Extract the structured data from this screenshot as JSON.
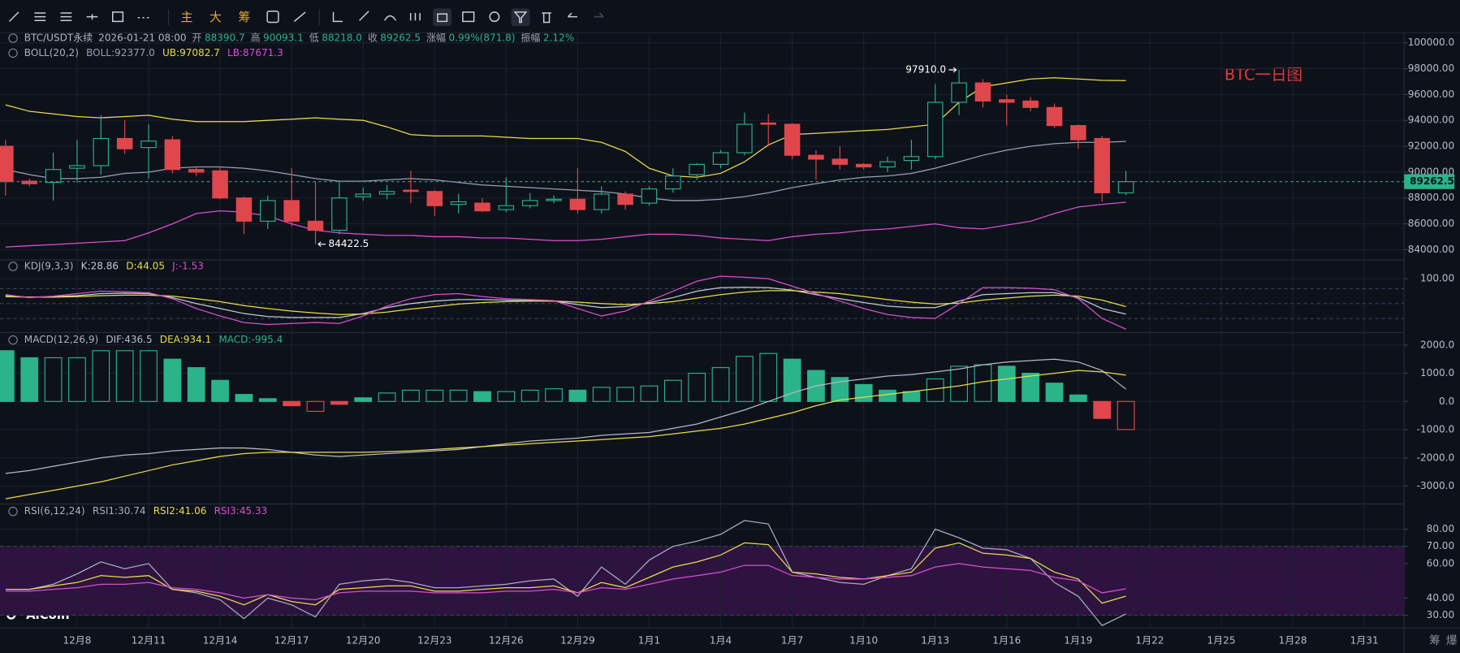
{
  "toolbar": {
    "modes": [
      "主",
      "大",
      "筹"
    ],
    "bottom_right": [
      "筹",
      "爆"
    ]
  },
  "watermark": "AiCoin",
  "info": {
    "symbol": "BTC/USDT永续",
    "time": "2026-01-21 08:00",
    "fields": [
      {
        "label": "开",
        "value": "88390.7"
      },
      {
        "label": "高",
        "value": "90093.1"
      },
      {
        "label": "低",
        "value": "88218.0"
      },
      {
        "label": "收",
        "value": "89262.5"
      },
      {
        "label": "涨幅",
        "value": "0.99%(871.8)"
      },
      {
        "label": "振幅",
        "value": "2.12%"
      }
    ]
  },
  "chart_data": [
    {
      "type": "candlestick",
      "title": "BTC一日图",
      "indicator": "BOLL(20,2)",
      "categories": [
        null,
        null,
        null,
        "12月8",
        null,
        null,
        "12月11",
        null,
        null,
        "12月14",
        null,
        null,
        "12月17",
        null,
        null,
        "12月20",
        null,
        null,
        "12月23",
        null,
        null,
        "12月26",
        null,
        null,
        "12月29",
        null,
        null,
        "1月1",
        null,
        null,
        "1月4",
        null,
        null,
        "1月7",
        null,
        null,
        "1月10",
        null,
        null,
        "1月13",
        null,
        null,
        "1月16",
        null,
        null,
        "1月19",
        null,
        null
      ],
      "future_categories": [
        "1月22",
        "1月25",
        "1月28",
        "1月31"
      ],
      "up_color": "#2bb38a",
      "down_color": "#e0474c",
      "open": [
        92000,
        89300,
        89200,
        90300,
        90500,
        92600,
        91900,
        92500,
        90200,
        90100,
        88000,
        86200,
        87800,
        86200,
        85500,
        88100,
        88300,
        88600,
        88500,
        87500,
        87600,
        87100,
        87400,
        87800,
        87900,
        87100,
        88300,
        87600,
        88700,
        89800,
        90600,
        91500,
        93800,
        93700,
        91300,
        91000,
        90600,
        90400,
        90900,
        91200,
        95400,
        96900,
        95600,
        95500,
        95000,
        93600,
        92600,
        88390.7
      ],
      "high": [
        92500,
        89500,
        91500,
        92500,
        94400,
        94000,
        93700,
        92800,
        90400,
        90400,
        88100,
        88200,
        90300,
        89300,
        89300,
        88800,
        89000,
        90100,
        88600,
        88300,
        88000,
        89600,
        88400,
        88200,
        90300,
        88900,
        88500,
        88900,
        90300,
        90700,
        91700,
        94600,
        94500,
        93800,
        91700,
        92000,
        90700,
        91200,
        92500,
        96800,
        97910,
        97200,
        96000,
        95800,
        95300,
        93700,
        92800,
        90093.1
      ],
      "low": [
        88180,
        88900,
        87800,
        89200,
        89800,
        91400,
        89500,
        89900,
        89700,
        87900,
        85200,
        85600,
        85800,
        84422.5,
        85200,
        87800,
        87900,
        87600,
        86600,
        86800,
        86900,
        86900,
        87200,
        87600,
        86800,
        86800,
        87100,
        87400,
        88400,
        89400,
        90300,
        91300,
        92000,
        91000,
        89400,
        90200,
        90200,
        90000,
        90200,
        91000,
        94400,
        95000,
        93600,
        94700,
        93400,
        91800,
        87700,
        88218
      ],
      "close": [
        89260,
        89100,
        90200,
        90500,
        92600,
        91800,
        92400,
        90200,
        90000,
        88000,
        86200,
        87800,
        86200,
        85500,
        88000,
        88300,
        88500,
        88500,
        87400,
        87700,
        87000,
        87400,
        87800,
        87900,
        87100,
        88300,
        87500,
        88700,
        89700,
        90600,
        91500,
        93700,
        93700,
        91300,
        91000,
        90600,
        90400,
        90800,
        91200,
        95400,
        96900,
        95500,
        95400,
        95000,
        93600,
        92500,
        88400,
        89262.5
      ],
      "extreme_labels": {
        "high": "97910.0",
        "low": "84422.5"
      },
      "series": [
        {
          "name": "BOLL:92377.0",
          "color": "#9a9fb4",
          "values": [
            90200,
            89800,
            89500,
            89500,
            89600,
            89900,
            90000,
            90300,
            90400,
            90400,
            90300,
            90100,
            89800,
            89500,
            89300,
            89300,
            89400,
            89500,
            89400,
            89200,
            89000,
            88900,
            88800,
            88700,
            88600,
            88500,
            88300,
            88000,
            87800,
            87800,
            87900,
            88100,
            88400,
            88800,
            89100,
            89400,
            89600,
            89700,
            89900,
            90300,
            90800,
            91300,
            91700,
            92000,
            92200,
            92300,
            92300,
            92377.0
          ]
        },
        {
          "name": "UB:97082.7",
          "color": "#e8dc4a",
          "values": [
            95200,
            94700,
            94500,
            94300,
            94200,
            94300,
            94400,
            94100,
            93900,
            93900,
            93900,
            94000,
            94100,
            94200,
            94100,
            94000,
            93500,
            92900,
            92800,
            92800,
            92800,
            92700,
            92600,
            92600,
            92600,
            92300,
            91600,
            90300,
            89700,
            89600,
            89900,
            90800,
            92100,
            92900,
            93000,
            93100,
            93200,
            93300,
            93500,
            93700,
            95400,
            96600,
            96900,
            97200,
            97300,
            97200,
            97100,
            97082.7
          ]
        },
        {
          "name": "LB:87671.3",
          "color": "#d94fcf",
          "values": [
            84200,
            84300,
            84400,
            84500,
            84600,
            84700,
            85300,
            86000,
            86800,
            87000,
            86900,
            86600,
            86000,
            85500,
            85300,
            85200,
            85100,
            85100,
            85000,
            85000,
            84900,
            84900,
            84800,
            84700,
            84700,
            84800,
            85000,
            85200,
            85200,
            85100,
            84900,
            84800,
            84700,
            85000,
            85200,
            85300,
            85500,
            85600,
            85800,
            86000,
            85700,
            85600,
            85900,
            86200,
            86800,
            87300,
            87500,
            87671.3
          ]
        }
      ],
      "ylim": [
        83280,
        100720
      ],
      "yticks": [
        {
          "value": 84000,
          "label": "84000.00"
        },
        {
          "value": 86000,
          "label": "86000.00"
        },
        {
          "value": 88000,
          "label": "88000.00"
        },
        {
          "value": 90000,
          "label": "90000.00"
        },
        {
          "value": 92000,
          "label": "92000.00"
        },
        {
          "value": 94000,
          "label": "94000.00"
        },
        {
          "value": 96000,
          "label": "96000.00"
        },
        {
          "value": 98000,
          "label": "98000.00"
        },
        {
          "value": 100000,
          "label": "100000.0"
        }
      ]
    },
    {
      "type": "line",
      "indicator": "KDJ(9,3,3)",
      "series": [
        {
          "name": "K:28.86",
          "color": "#c4c8d4",
          "values": [
            66,
            63,
            64,
            66,
            70,
            71,
            70,
            62,
            50,
            40,
            30,
            24,
            22,
            22,
            22,
            30,
            42,
            50,
            55,
            58,
            58,
            57,
            56,
            55,
            48,
            42,
            44,
            52,
            62,
            75,
            82,
            83,
            82,
            77,
            68,
            60,
            52,
            45,
            42,
            42,
            55,
            68,
            70,
            72,
            72,
            62,
            40,
            28.86
          ]
        },
        {
          "name": "D:44.05",
          "color": "#e8dc4a",
          "values": [
            64,
            63,
            63,
            64,
            66,
            67,
            67,
            65,
            60,
            54,
            46,
            40,
            35,
            31,
            28,
            29,
            33,
            39,
            44,
            49,
            52,
            54,
            55,
            55,
            53,
            50,
            48,
            50,
            54,
            61,
            68,
            73,
            76,
            76,
            73,
            70,
            64,
            58,
            53,
            49,
            51,
            57,
            61,
            65,
            67,
            65,
            57,
            44.05
          ]
        },
        {
          "name": "J:-1.53",
          "color": "#d94fcf",
          "values": [
            68,
            62,
            65,
            70,
            75,
            74,
            72,
            60,
            40,
            25,
            12,
            8,
            10,
            12,
            10,
            25,
            45,
            60,
            68,
            70,
            64,
            60,
            58,
            56,
            40,
            25,
            35,
            55,
            75,
            95,
            105,
            103,
            100,
            85,
            70,
            55,
            40,
            28,
            22,
            20,
            50,
            82,
            82,
            81,
            78,
            60,
            20,
            -1.53
          ]
        }
      ],
      "ylim": [
        -6.4,
        136
      ],
      "yticks": [
        {
          "value": 100,
          "label": "100.00"
        }
      ],
      "levels": [
        80,
        50,
        20
      ]
    },
    {
      "type": "bar",
      "indicator": "MACD(12,26,9)",
      "series": [
        {
          "name": "DIF:436.5",
          "type": "line",
          "color": "#b6b9c8",
          "values": [
            -2550,
            -2450,
            -2300,
            -2150,
            -2000,
            -1900,
            -1850,
            -1750,
            -1700,
            -1650,
            -1650,
            -1700,
            -1800,
            -1900,
            -1950,
            -1900,
            -1850,
            -1800,
            -1750,
            -1700,
            -1600,
            -1500,
            -1400,
            -1350,
            -1300,
            -1200,
            -1150,
            -1100,
            -950,
            -800,
            -550,
            -300,
            0,
            300,
            550,
            700,
            800,
            900,
            950,
            1050,
            1150,
            1300,
            1400,
            1450,
            1500,
            1400,
            1100,
            436.5
          ]
        },
        {
          "name": "DEA:934.1",
          "type": "line",
          "color": "#e8dc4a",
          "values": [
            -3450,
            -3300,
            -3150,
            -3000,
            -2850,
            -2650,
            -2450,
            -2250,
            -2100,
            -1950,
            -1850,
            -1800,
            -1800,
            -1800,
            -1800,
            -1800,
            -1780,
            -1750,
            -1700,
            -1650,
            -1600,
            -1550,
            -1500,
            -1450,
            -1400,
            -1350,
            -1300,
            -1250,
            -1150,
            -1050,
            -950,
            -800,
            -600,
            -400,
            -150,
            50,
            150,
            250,
            350,
            450,
            550,
            700,
            800,
            900,
            1000,
            1100,
            1050,
            934.1
          ]
        },
        {
          "name": "MACD:-995.4",
          "type": "bar",
          "color": "#2bb38a",
          "negative_color": "#e0474c",
          "values": [
            1800,
            1550,
            1550,
            1550,
            1800,
            1800,
            1800,
            1500,
            1200,
            750,
            250,
            100,
            -150,
            -350,
            -100,
            130,
            300,
            400,
            400,
            400,
            350,
            350,
            400,
            450,
            400,
            500,
            500,
            550,
            750,
            1000,
            1200,
            1600,
            1700,
            1500,
            1100,
            850,
            600,
            400,
            350,
            800,
            1250,
            1300,
            1250,
            1000,
            650,
            230,
            -600,
            -995.4
          ]
        }
      ],
      "ylim": [
        -3600,
        2410
      ],
      "yticks": [
        {
          "value": -3000,
          "label": "-3000.0"
        },
        {
          "value": -2000,
          "label": "-2000.0"
        },
        {
          "value": -1000,
          "label": "-1000.0"
        },
        {
          "value": 0,
          "label": "0.0"
        },
        {
          "value": 1000,
          "label": "1000.0"
        },
        {
          "value": 2000,
          "label": "2000.0"
        }
      ]
    },
    {
      "type": "line",
      "indicator": "RSI(6,12,24)",
      "series": [
        {
          "name": "RSI1:30.74",
          "color": "#a9adbd",
          "values": [
            45,
            45,
            48,
            54,
            61,
            57,
            60,
            45,
            43,
            39,
            28,
            40,
            36,
            29,
            48,
            50,
            51,
            49,
            46,
            46,
            47,
            48,
            50,
            51,
            41,
            58,
            48,
            62,
            70,
            73,
            77,
            85,
            83,
            55,
            52,
            49,
            48,
            53,
            57,
            80,
            75,
            69,
            68,
            63,
            49,
            41,
            24,
            30.74
          ]
        },
        {
          "name": "RSI2:41.06",
          "color": "#e8dc4a",
          "values": [
            45,
            45,
            47,
            49,
            53,
            52,
            53,
            45,
            44,
            41,
            36,
            42,
            38,
            36,
            45,
            46,
            47,
            47,
            44,
            44,
            45,
            46,
            46,
            47,
            43,
            49,
            46,
            52,
            58,
            61,
            65,
            72,
            71,
            55,
            54,
            52,
            51,
            53,
            55,
            69,
            72,
            66,
            65,
            63,
            55,
            51,
            37,
            41.06
          ]
        },
        {
          "name": "RSI3:45.33",
          "color": "#d94fcf",
          "values": [
            44,
            44,
            45,
            46,
            48,
            48,
            49,
            46,
            45,
            43,
            40,
            42,
            40,
            39,
            43,
            44,
            44,
            44,
            43,
            43,
            43,
            44,
            44,
            45,
            43,
            46,
            45,
            48,
            51,
            53,
            55,
            59,
            59,
            53,
            52,
            51,
            51,
            52,
            53,
            58,
            60,
            58,
            57,
            56,
            52,
            50,
            43,
            45.33
          ]
        }
      ],
      "ylim": [
        23.2,
        94.1
      ],
      "yticks": [
        {
          "value": 30,
          "label": "30.00"
        },
        {
          "value": 40,
          "label": "40.00"
        },
        {
          "value": 60,
          "label": "60.00"
        },
        {
          "value": 70,
          "label": "70.00"
        },
        {
          "value": 80,
          "label": "80.00"
        }
      ],
      "band": [
        30,
        70
      ],
      "levels": [
        70,
        30
      ]
    }
  ]
}
